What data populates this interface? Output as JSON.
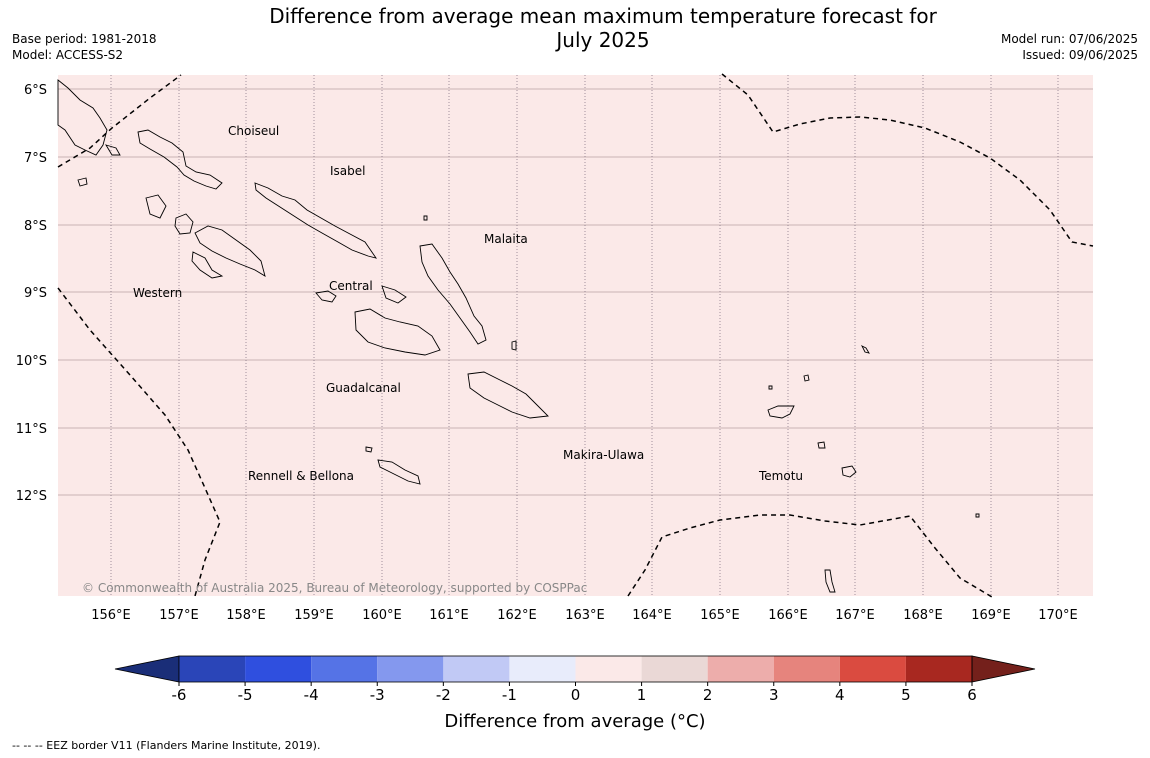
{
  "title_line1": "Difference from average mean maximum temperature forecast for",
  "title_line2": "July 2025",
  "base_period": "Base period: 1981-2018",
  "model": "Model: ACCESS-S2",
  "model_run": "Model run: 07/06/2025",
  "issued": "Issued: 09/06/2025",
  "copyright": "© Commonwealth of Australia 2025, Bureau of Meteorology, supported by COSPPac",
  "footnote": "-- -- -- EEZ border V11 (Flanders Marine Institute, 2019).",
  "map": {
    "fill_color": "#fbe9e8",
    "anomaly_category": "0 to 1 °C",
    "lat_labels": [
      "6°S",
      "7°S",
      "8°S",
      "9°S",
      "10°S",
      "11°S",
      "12°S"
    ],
    "lon_labels": [
      "156°E",
      "157°E",
      "158°E",
      "159°E",
      "160°E",
      "161°E",
      "162°E",
      "163°E",
      "164°E",
      "165°E",
      "166°E",
      "167°E",
      "168°E",
      "169°E",
      "170°E"
    ],
    "provinces": [
      "Choiseul",
      "Isabel",
      "Malaita",
      "Western",
      "Central",
      "Guadalcanal",
      "Makira-Ulawa",
      "Rennell & Bellona",
      "Temotu"
    ]
  },
  "colorbar": {
    "label": "Difference from average (°C)",
    "ticks": [
      "-6",
      "-5",
      "-4",
      "-3",
      "-2",
      "-1",
      "0",
      "1",
      "2",
      "3",
      "4",
      "5",
      "6"
    ],
    "colors": [
      "#1a2e78",
      "#2a45b8",
      "#2f4fdf",
      "#5573e6",
      "#8498ee",
      "#c1c9f5",
      "#e8ecfb",
      "#fbe9e8",
      "#ead8d6",
      "#edadab",
      "#e6847d",
      "#da4b40",
      "#a82820",
      "#74201b"
    ]
  }
}
